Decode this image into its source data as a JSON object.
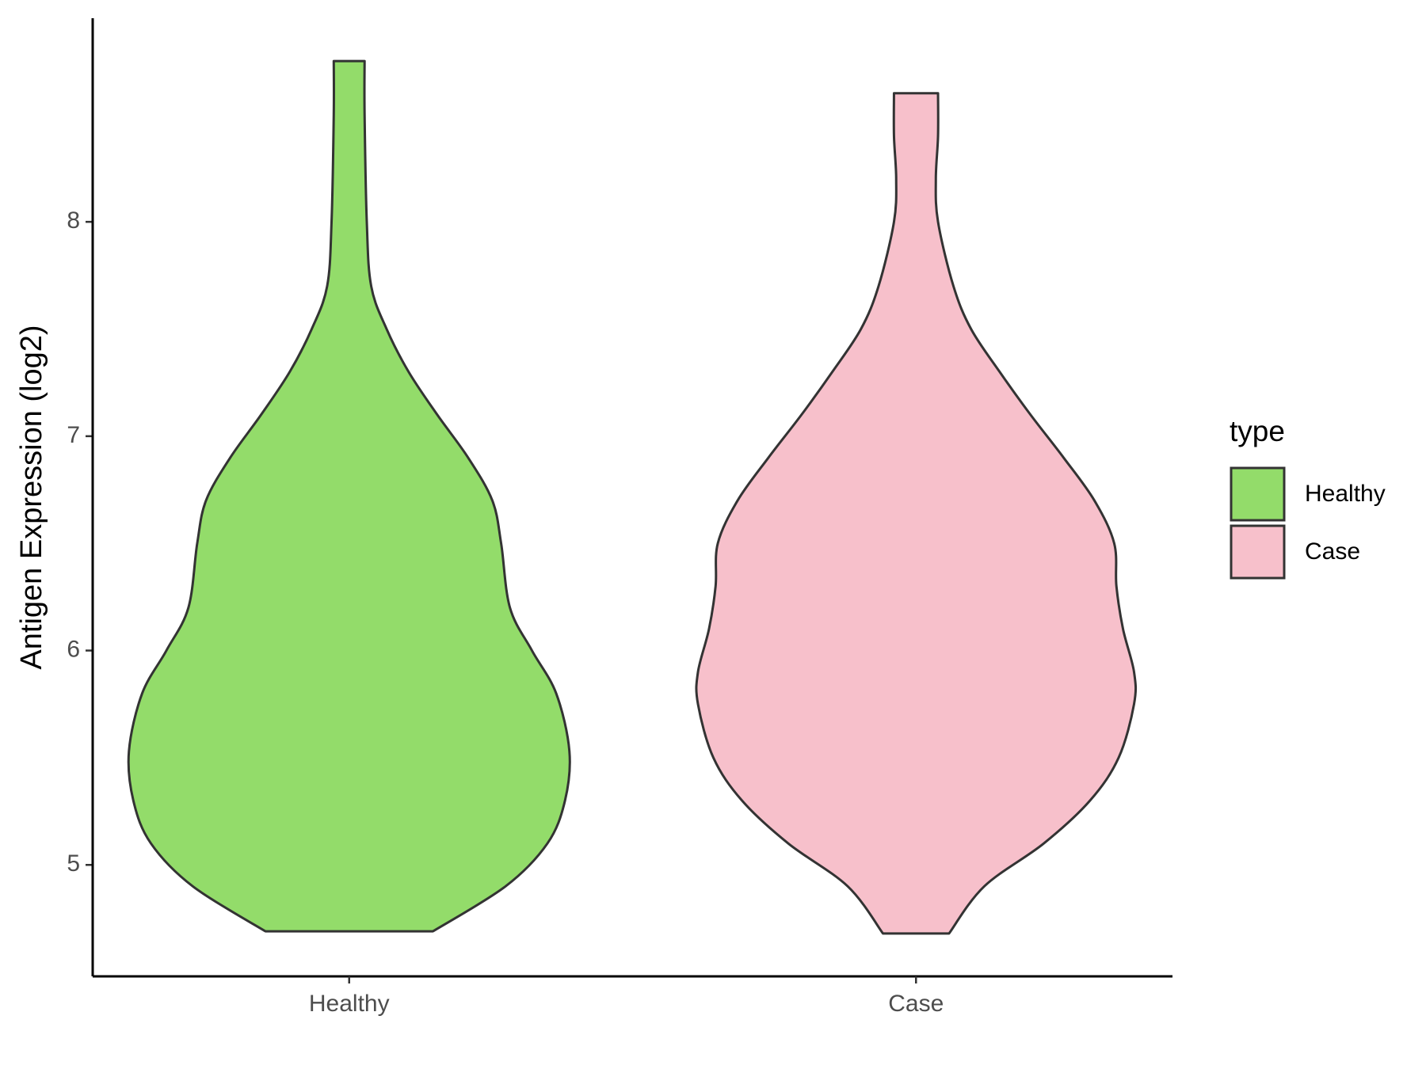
{
  "chart_data": {
    "type": "violin",
    "y_label": "Antigen Expression (log2)",
    "categories": [
      "Healthy",
      "Case"
    ],
    "legend_title": "type",
    "legend": "right",
    "ylim": [
      4.48,
      8.95
    ],
    "yticks": [
      5,
      6,
      7,
      8
    ],
    "grid": false,
    "series": [
      {
        "name": "Healthy",
        "color": "#93dc6a",
        "y": [
          4.69,
          4.9,
          5.1,
          5.3,
          5.53,
          5.8,
          6.0,
          6.2,
          6.5,
          6.7,
          6.9,
          7.1,
          7.3,
          7.5,
          7.7,
          8.0,
          8.5,
          8.75
        ],
        "density": [
          0.38,
          0.71,
          0.9,
          0.98,
          1.0,
          0.94,
          0.83,
          0.73,
          0.69,
          0.65,
          0.54,
          0.4,
          0.27,
          0.17,
          0.1,
          0.08,
          0.07,
          0.07
        ]
      },
      {
        "name": "Case",
        "color": "#f7c0cb",
        "y": [
          4.68,
          4.9,
          5.1,
          5.3,
          5.5,
          5.75,
          5.9,
          6.1,
          6.3,
          6.5,
          6.7,
          6.9,
          7.1,
          7.3,
          7.5,
          7.7,
          8.0,
          8.2,
          8.4,
          8.6
        ],
        "density": [
          0.15,
          0.31,
          0.58,
          0.79,
          0.92,
          0.99,
          0.99,
          0.94,
          0.91,
          0.9,
          0.81,
          0.67,
          0.52,
          0.38,
          0.25,
          0.17,
          0.1,
          0.09,
          0.1,
          0.1
        ]
      }
    ]
  }
}
